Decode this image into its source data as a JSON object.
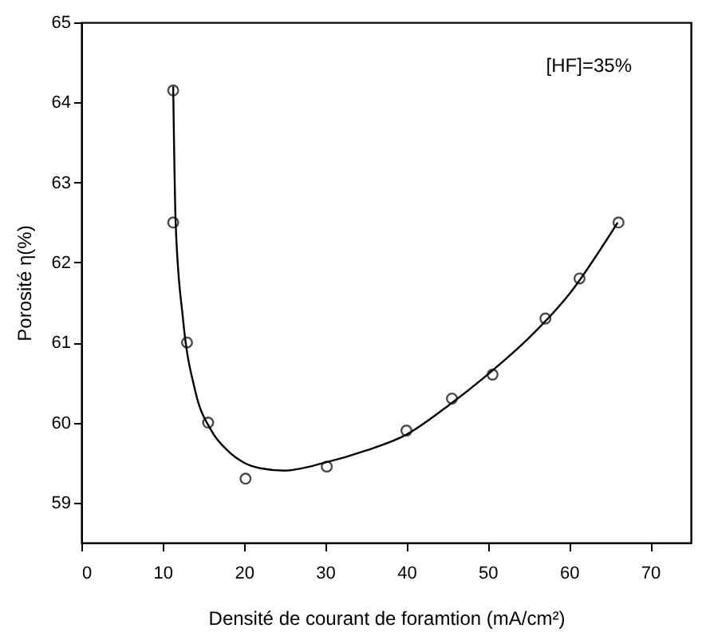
{
  "chart_data": {
    "type": "scatter",
    "xlabel": "Densité de courant de foramtion (mA/cm²)",
    "ylabel": "Porosité  η(%)",
    "annotations": [
      "[HF]=35%"
    ],
    "xlim": [
      0,
      75
    ],
    "xticks": [
      0,
      10,
      20,
      30,
      40,
      50,
      60,
      70
    ],
    "ylim": [
      58.5,
      65
    ],
    "yticks": [
      59,
      60,
      61,
      62,
      63,
      64,
      65
    ],
    "grid": false,
    "series": [
      {
        "marker": "circle",
        "color": "#000000",
        "x": [
          11.3,
          11.3,
          13,
          15.6,
          20.2,
          30.2,
          40,
          45.6,
          50.6,
          57.1,
          61.3,
          66.1
        ],
        "values": [
          64.15,
          62.5,
          61.0,
          60.0,
          59.3,
          59.45,
          59.9,
          60.3,
          60.6,
          61.3,
          61.8,
          62.5
        ]
      },
      {
        "type": "line",
        "marker": "none",
        "line_style": "solid",
        "color": "#000000",
        "x": [
          11.3,
          11.6,
          12.5,
          14,
          16,
          18,
          20,
          22,
          25,
          30,
          35,
          40,
          45,
          50,
          55,
          60,
          66
        ],
        "values": [
          64.2,
          62.5,
          61.3,
          60.4,
          59.9,
          59.65,
          59.5,
          59.43,
          59.4,
          59.5,
          59.65,
          59.85,
          60.2,
          60.6,
          61.05,
          61.6,
          62.5
        ]
      }
    ]
  }
}
